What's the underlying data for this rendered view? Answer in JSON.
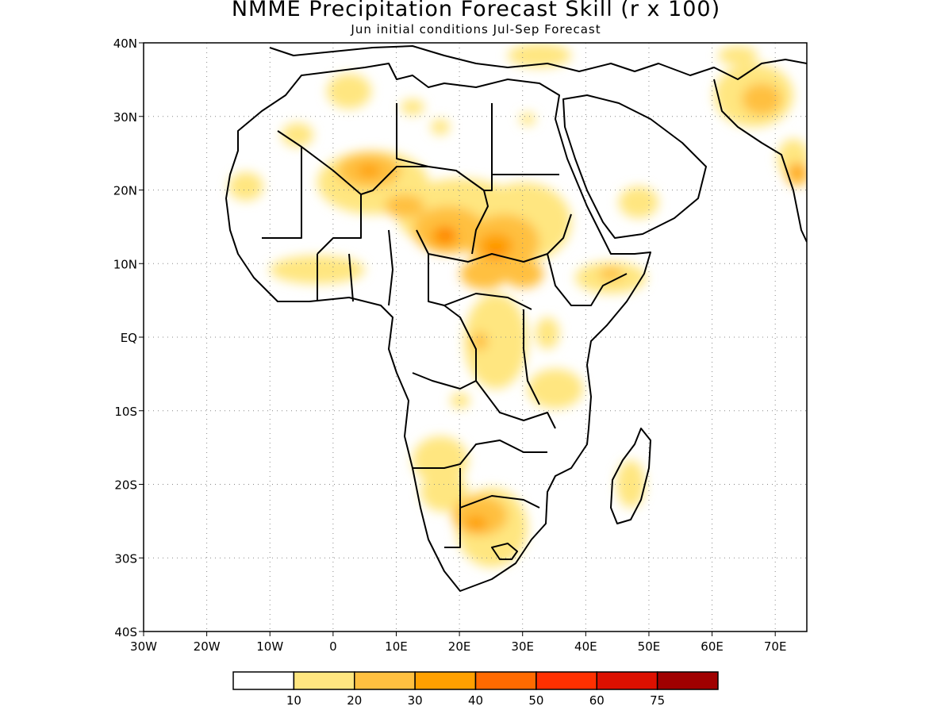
{
  "title": "NMME Precipitation Forecast Skill (r x 100)",
  "subtitle": "Jun initial conditions  Jul-Sep Forecast",
  "map": {
    "lon_range": [
      -30,
      75
    ],
    "lat_range": [
      -40,
      40
    ],
    "lat_ticks": [
      "40N",
      "30N",
      "20N",
      "10N",
      "EQ",
      "10S",
      "20S",
      "30S",
      "40S"
    ],
    "lon_ticks": [
      "30W",
      "20W",
      "10W",
      "0",
      "10E",
      "20E",
      "30E",
      "40E",
      "50E",
      "60E",
      "70E"
    ],
    "grid": "dotted"
  },
  "legend": {
    "colors": [
      "#ffffff",
      "#ffe680",
      "#ffc040",
      "#ffa000",
      "#ff6a00",
      "#ff3000",
      "#dd1000",
      "#a00000"
    ],
    "labels": [
      "10",
      "20",
      "30",
      "40",
      "50",
      "60",
      "75"
    ]
  }
}
